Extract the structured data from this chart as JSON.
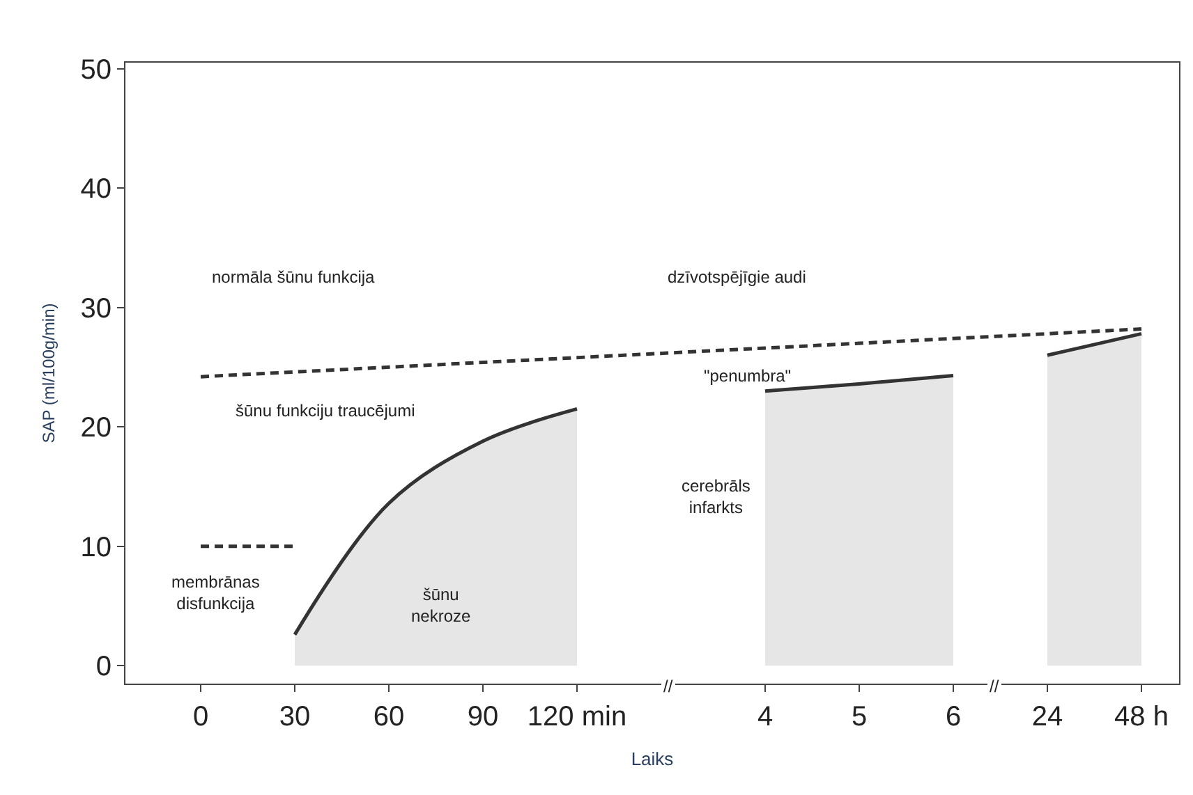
{
  "chart_data": {
    "type": "line",
    "xlabel": "Laiks",
    "ylabel": "SAP (ml/100g/min)",
    "categories": [
      "0",
      "30",
      "60",
      "90",
      "120 min",
      null,
      "4",
      "5",
      "6",
      "24",
      "48 h"
    ],
    "ylim": [
      -1.5,
      50.5
    ],
    "yticks": [
      0,
      10,
      20,
      30,
      40,
      50
    ],
    "series": [
      {
        "type": "area",
        "color": "#333333",
        "values": [
          null,
          2.6,
          13.6,
          18.8,
          21.5,
          null,
          null,
          null,
          null,
          null,
          null
        ]
      },
      {
        "type": "area",
        "color": "#333333",
        "values": [
          null,
          null,
          null,
          null,
          null,
          null,
          23.0,
          23.6,
          24.3,
          null,
          null
        ]
      },
      {
        "type": "area",
        "color": "#333333",
        "values": [
          null,
          null,
          null,
          null,
          null,
          null,
          null,
          null,
          null,
          26.0,
          27.8
        ]
      },
      {
        "line_style": "dashed",
        "color": "#333333",
        "values": [
          24.2,
          null,
          null,
          null,
          null,
          null,
          null,
          null,
          null,
          null,
          28.2
        ]
      },
      {
        "line_style": "dashed",
        "color": "#333333",
        "values": [
          10,
          10,
          null,
          null,
          null,
          null,
          null,
          null,
          null,
          null,
          null
        ]
      }
    ],
    "annotations": [
      "normāla šūnu funkcija",
      "dzīvotspējīgie audi",
      "šūnu funkciju traucējumi",
      "\"penumbra\"",
      "membrānas\ndisfunkcija",
      "šūnu\nnekroze",
      "cerebrāls\ninfarkts",
      "//",
      "//"
    ]
  }
}
